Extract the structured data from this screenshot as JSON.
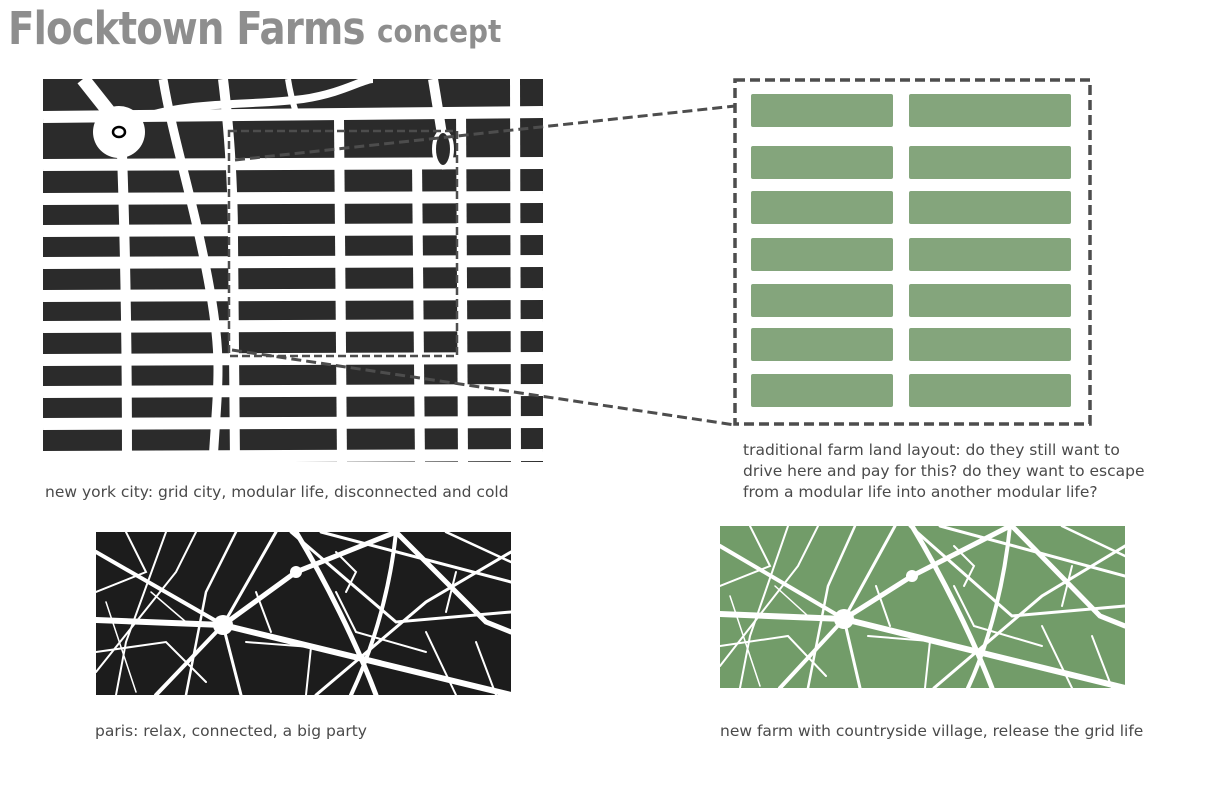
{
  "header": {
    "title": "Flocktown Farms",
    "subtitle": "concept"
  },
  "panels": {
    "nyc": {
      "caption": "new york city: grid city, modular life, disconnected and cold",
      "block_color": "#2b2b2b",
      "street_color": "#ffffff"
    },
    "farm": {
      "caption": "traditional farm land layout: do they still want to drive here and pay for this? do they want to escape from a modular life into another modular life?",
      "field_color": "#84a57c",
      "border_color": "#4d4d4d"
    },
    "paris": {
      "caption": "paris: relax, connected, a big party",
      "block_color": "#1c1c1c"
    },
    "newfarm": {
      "caption": "new farm with countryside village, release the grid life",
      "block_color": "#729c69"
    }
  }
}
